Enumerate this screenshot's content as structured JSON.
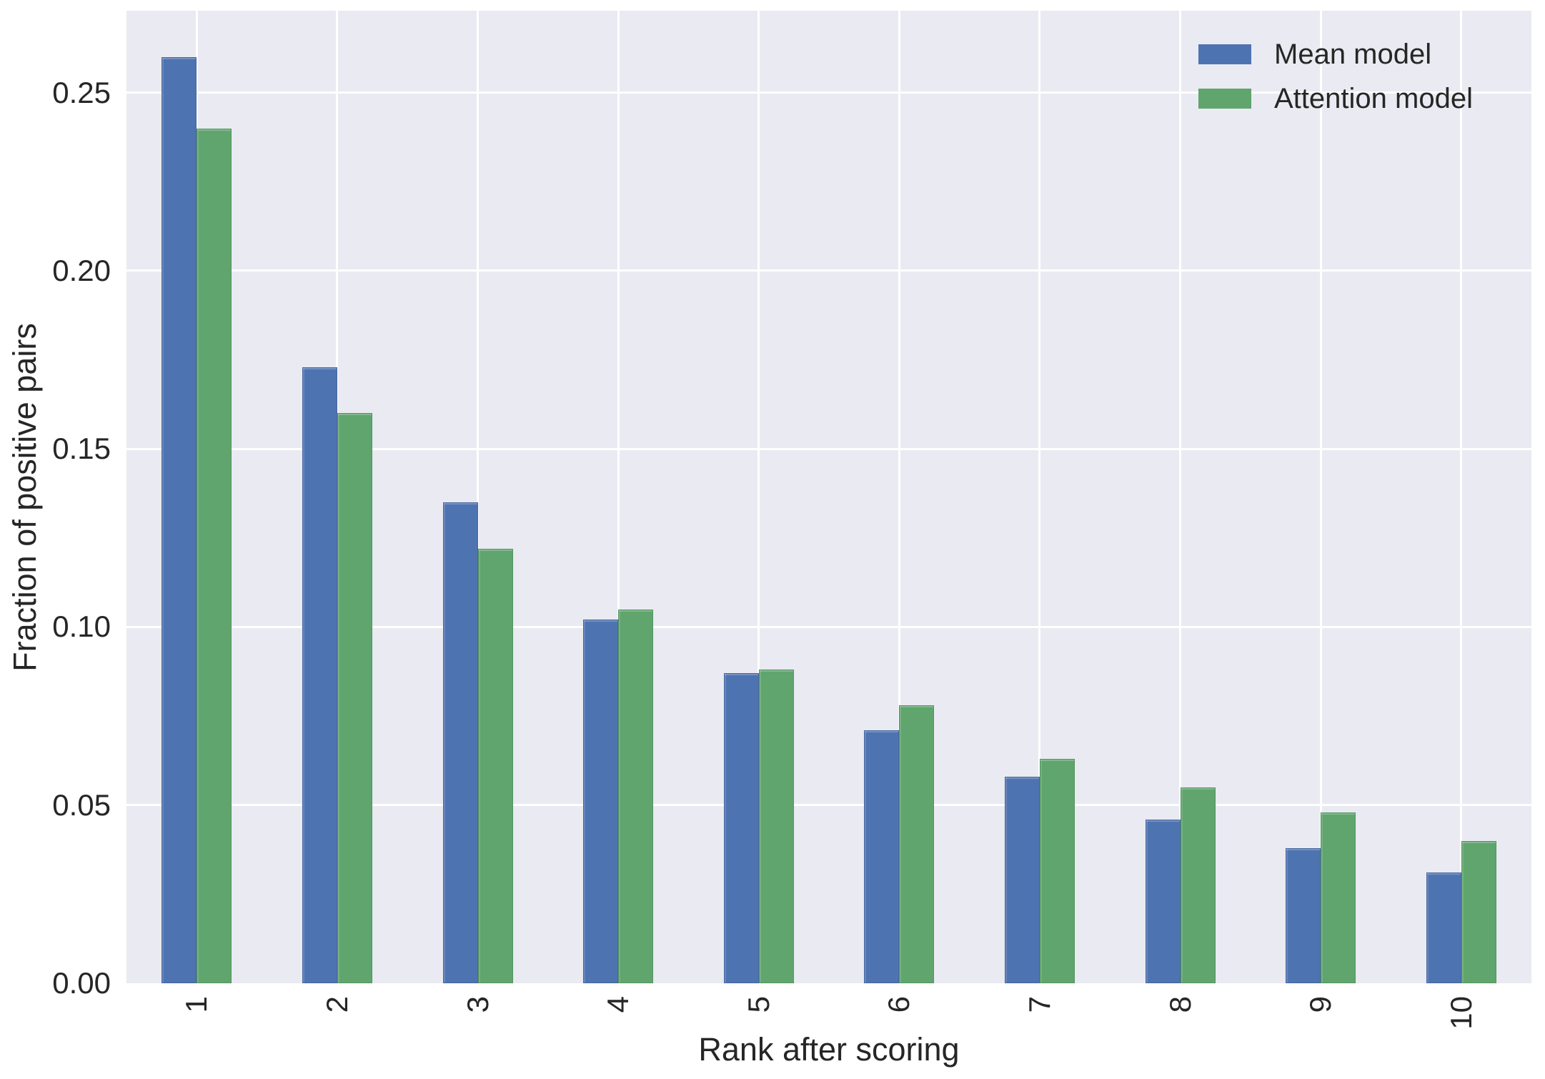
{
  "chart_data": {
    "type": "bar",
    "title": "",
    "xlabel": "Rank after scoring",
    "ylabel": "Fraction of positive pairs",
    "categories": [
      "1",
      "2",
      "3",
      "4",
      "5",
      "6",
      "7",
      "8",
      "9",
      "10"
    ],
    "series": [
      {
        "name": "Mean model",
        "color": "#4e73b1",
        "values": [
          0.26,
          0.173,
          0.135,
          0.102,
          0.087,
          0.071,
          0.058,
          0.046,
          0.038,
          0.031
        ]
      },
      {
        "name": "Attention model",
        "color": "#5fa56d",
        "values": [
          0.24,
          0.16,
          0.122,
          0.105,
          0.088,
          0.078,
          0.063,
          0.055,
          0.048,
          0.04
        ]
      }
    ],
    "ylim": [
      0,
      0.273
    ],
    "yticks": [
      {
        "value": 0.0,
        "label": "0.00"
      },
      {
        "value": 0.05,
        "label": "0.05"
      },
      {
        "value": 0.1,
        "label": "0.10"
      },
      {
        "value": 0.15,
        "label": "0.15"
      },
      {
        "value": 0.2,
        "label": "0.20"
      },
      {
        "value": 0.25,
        "label": "0.25"
      }
    ],
    "grid": true,
    "gridline_color": "#ffffff",
    "plot_background": "#eaeaf2",
    "legend_position": "upper right",
    "xtick_rotation": 90
  }
}
